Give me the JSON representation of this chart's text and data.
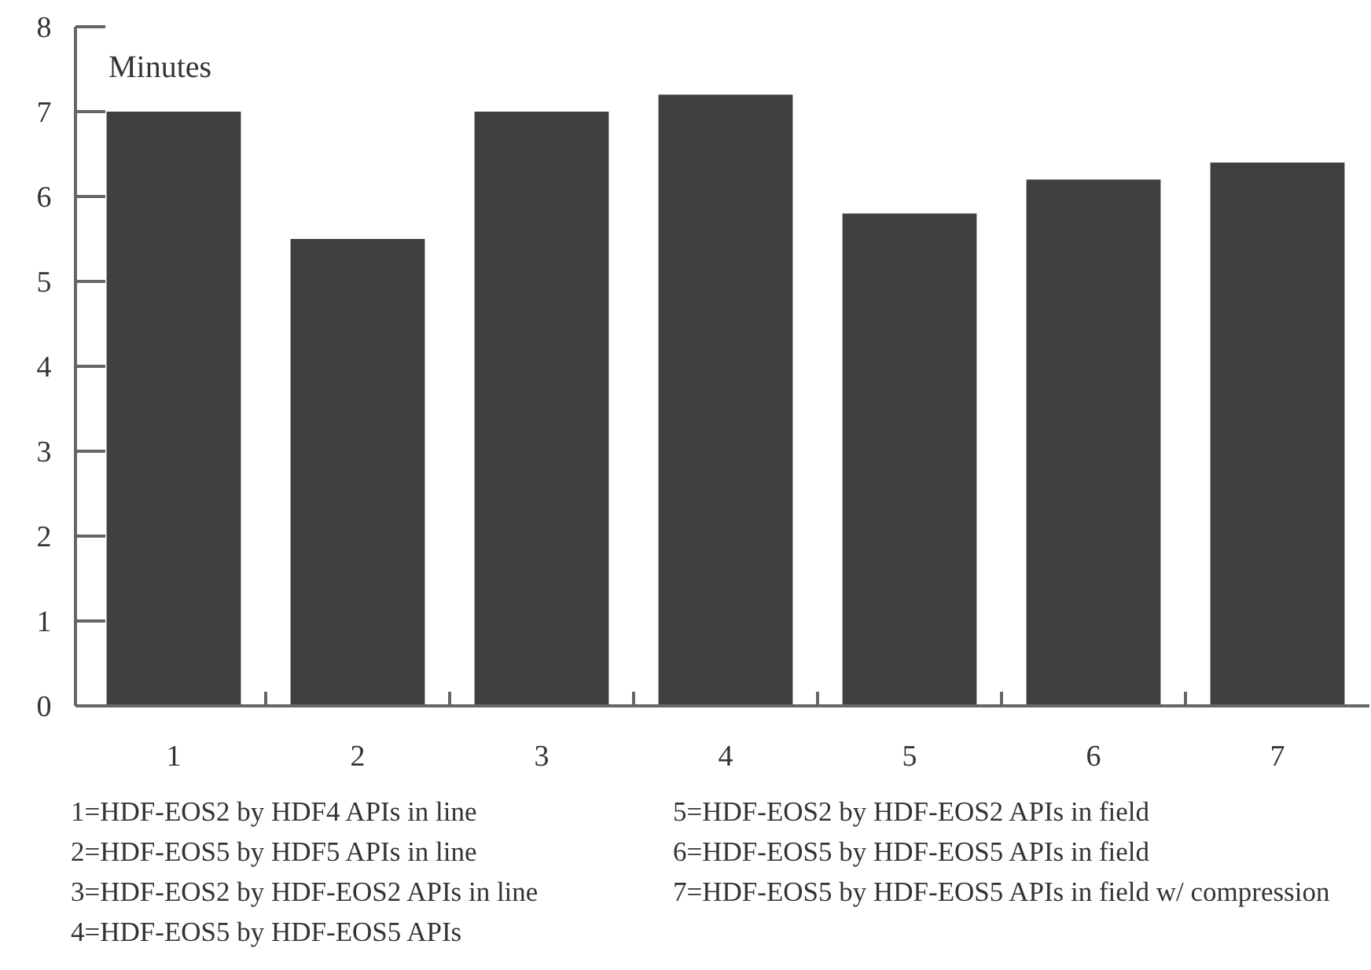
{
  "chart_data": {
    "type": "bar",
    "ylabel": "Minutes",
    "categories": [
      "1",
      "2",
      "3",
      "4",
      "5",
      "6",
      "7"
    ],
    "values": [
      7.0,
      5.5,
      7.0,
      7.2,
      5.8,
      6.2,
      6.4
    ],
    "color": "#404040",
    "ylim": [
      0,
      8
    ],
    "yticks": [
      0,
      1,
      2,
      3,
      4,
      5,
      6,
      7,
      8
    ],
    "annotations": [
      "1=HDF-EOS2 by HDF4 APIs in line",
      "2=HDF-EOS5 by HDF5 APIs in line",
      "3=HDF-EOS2 by HDF-EOS2 APIs in line",
      "4=HDF-EOS5 by HDF-EOS5 APIs",
      "5=HDF-EOS2 by HDF-EOS2 APIs in field",
      "6=HDF-EOS5 by HDF-EOS5 APIs in field",
      "7=HDF-EOS5 by HDF-EOS5 APIs in field w/ compression"
    ]
  }
}
